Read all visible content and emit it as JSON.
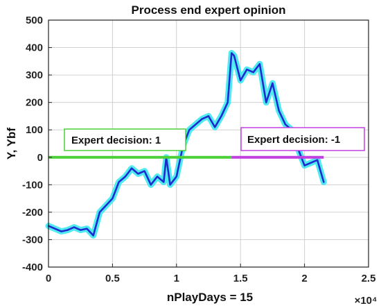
{
  "chart_data": {
    "type": "line",
    "title": "Process end expert opinion",
    "xlabel": "nPlayDays = 15",
    "ylabel": "Y,  Ybf",
    "x_exponent_label": "×10⁴",
    "xlim": [
      0,
      2.5
    ],
    "ylim": [
      -400,
      500
    ],
    "xticks": [
      0,
      0.5,
      1,
      1.5,
      2,
      2.5
    ],
    "xtick_labels": [
      "0",
      "0.5",
      "1",
      "1.5",
      "2",
      "2.5"
    ],
    "yticks": [
      -400,
      -300,
      -200,
      -100,
      0,
      100,
      200,
      300,
      400,
      500
    ],
    "ytick_labels": [
      "-400",
      "-300",
      "-200",
      "-100",
      "0",
      "100",
      "200",
      "300",
      "400",
      "500"
    ],
    "grid": true,
    "colors": {
      "ybf": "#1e2bd0",
      "y": "#33e6ee",
      "decision_pos": "#4cd03a",
      "decision_neg": "#c040e0",
      "grid": "#d0d0d0"
    },
    "series": [
      {
        "x": [
          0,
          0.05,
          0.1,
          0.15,
          0.2,
          0.25,
          0.3,
          0.35,
          0.4,
          0.45,
          0.5,
          0.55,
          0.6,
          0.65,
          0.7,
          0.75,
          0.8,
          0.85,
          0.9,
          0.92,
          0.95,
          1.0,
          1.05,
          1.1,
          1.15,
          1.2,
          1.25,
          1.3,
          1.35,
          1.4,
          1.43,
          1.45,
          1.5,
          1.55,
          1.6,
          1.65,
          1.7,
          1.75,
          1.8,
          1.85,
          1.9,
          1.95,
          2.0,
          2.05,
          2.1,
          2.15
        ],
        "values": [
          -250,
          -260,
          -270,
          -265,
          -255,
          -265,
          -260,
          -285,
          -200,
          -175,
          -150,
          -90,
          -70,
          -40,
          -60,
          -50,
          -100,
          -70,
          -90,
          0,
          -100,
          -70,
          40,
          100,
          120,
          140,
          150,
          110,
          150,
          200,
          380,
          370,
          280,
          320,
          310,
          340,
          200,
          270,
          170,
          120,
          100,
          30,
          -30,
          -20,
          -10,
          -90
        ]
      }
    ],
    "decisions": [
      {
        "label": "Expert decision: 1",
        "x_start": 0,
        "x_end": 1.43,
        "value": 0
      },
      {
        "label": "Expert decision: -1",
        "x_start": 1.43,
        "x_end": 2.15,
        "value": 0
      }
    ]
  }
}
